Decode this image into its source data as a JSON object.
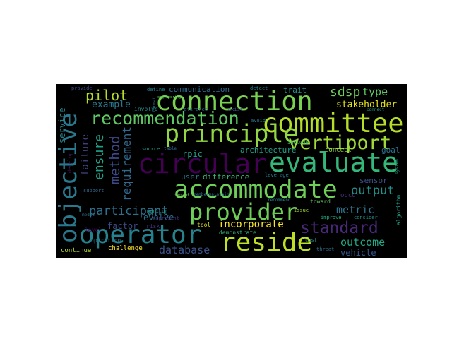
{
  "cloud": {
    "background": "#000000",
    "words": [
      {
        "text": "circular",
        "color": "#440154"
      },
      {
        "text": "evaluate",
        "color": "#35b779"
      },
      {
        "text": "accommodate",
        "color": "#6ece58"
      },
      {
        "text": "committee",
        "color": "#b5de2b"
      },
      {
        "text": "connection",
        "color": "#7ad151"
      },
      {
        "text": "principle",
        "color": "#90d743"
      },
      {
        "text": "operator",
        "color": "#26828e"
      },
      {
        "text": "reside",
        "color": "#bddf26"
      },
      {
        "text": "provider",
        "color": "#6ece58"
      },
      {
        "text": "objective",
        "color": "#2a788e"
      },
      {
        "text": "recommendation",
        "color": "#5ec962"
      },
      {
        "text": "vertiport",
        "color": "#a0da39"
      },
      {
        "text": "standard",
        "color": "#482878"
      },
      {
        "text": "method",
        "color": "#3e4989"
      },
      {
        "text": "ensure",
        "color": "#1fa187"
      },
      {
        "text": "requirement",
        "color": "#31688e"
      },
      {
        "text": "pilot",
        "color": "#b5de2b"
      },
      {
        "text": "participant",
        "color": "#2d708e"
      },
      {
        "text": "incorporate",
        "color": "#fde725"
      },
      {
        "text": "database",
        "color": "#3b528b"
      },
      {
        "text": "output",
        "color": "#21918c"
      },
      {
        "text": "outcome",
        "color": "#22a884"
      },
      {
        "text": "metric",
        "color": "#2c728e"
      },
      {
        "text": "sdsp",
        "color": "#6ece58"
      },
      {
        "text": "type",
        "color": "#5ec962"
      },
      {
        "text": "stakeholder",
        "color": "#e5e419"
      },
      {
        "text": "example",
        "color": "#2a788e"
      },
      {
        "text": "communication",
        "color": "#31688e"
      },
      {
        "text": "failure",
        "color": "#414487"
      },
      {
        "text": "service",
        "color": "#25838e"
      },
      {
        "text": "rpic",
        "color": "#1f9e89"
      },
      {
        "text": "architecture",
        "color": "#1fa187"
      },
      {
        "text": "difference",
        "color": "#35b779"
      },
      {
        "text": "user",
        "color": "#2a788e"
      },
      {
        "text": "factor",
        "color": "#3e4a89"
      },
      {
        "text": "evolve",
        "color": "#2c728e"
      },
      {
        "text": "vehicle",
        "color": "#38588c"
      },
      {
        "text": "sensor",
        "color": "#3b528b"
      },
      {
        "text": "goal",
        "color": "#2c728e"
      },
      {
        "text": "trait",
        "color": "#21918c"
      },
      {
        "text": "concept",
        "color": "#90d743"
      },
      {
        "text": "challenge",
        "color": "#fde725"
      },
      {
        "text": "continue",
        "color": "#b5de2b"
      },
      {
        "text": "demonstrate",
        "color": "#35b779"
      },
      {
        "text": "tool",
        "color": "#d8e219"
      },
      {
        "text": "risk",
        "color": "#46337e"
      },
      {
        "text": "level",
        "color": "#440154"
      },
      {
        "text": "toward",
        "color": "#5ec962"
      },
      {
        "text": "occur",
        "color": "#46327e"
      },
      {
        "text": "leverage",
        "color": "#297b8e"
      },
      {
        "text": "algorithm",
        "color": "#1fa187"
      },
      {
        "text": "consider",
        "color": "#21918c"
      },
      {
        "text": "improve",
        "color": "#22a884"
      },
      {
        "text": "threat",
        "color": "#2c728e"
      },
      {
        "text": "cost",
        "color": "#228d8d"
      },
      {
        "text": "issue",
        "color": "#a8db34"
      },
      {
        "text": "represent",
        "color": "#472d7b"
      },
      {
        "text": "monitor",
        "color": "#1f9e89"
      },
      {
        "text": "depend",
        "color": "#6ece58"
      },
      {
        "text": "membermaintain",
        "color": "#2d708e"
      },
      {
        "text": "reference",
        "color": "#2c728e"
      },
      {
        "text": "involve",
        "color": "#21918c"
      },
      {
        "text": "exist",
        "color": "#3b528b"
      },
      {
        "text": "source",
        "color": "#1f9e89"
      },
      {
        "text": "table",
        "color": "#31688e"
      },
      {
        "text": "avoid",
        "color": "#2a788e"
      },
      {
        "text": "include",
        "color": "#4ac16d"
      },
      {
        "text": "detect",
        "color": "#26828e"
      },
      {
        "text": "define",
        "color": "#26828e"
      },
      {
        "text": "provide",
        "color": "#3e4989"
      },
      {
        "text": "model",
        "color": "#2c728e"
      },
      {
        "text": "operation",
        "color": "#2a788e"
      },
      {
        "text": "support",
        "color": "#31688e"
      },
      {
        "text": "develop",
        "color": "#481a6c"
      },
      {
        "text": "connect",
        "color": "#1f9e89"
      },
      {
        "text": "recommend",
        "color": "#26828e"
      },
      {
        "text": "system",
        "color": "#1fa187"
      },
      {
        "text": "format",
        "color": "#2c728e"
      },
      {
        "text": "engineering",
        "color": "#5ec962"
      }
    ]
  }
}
